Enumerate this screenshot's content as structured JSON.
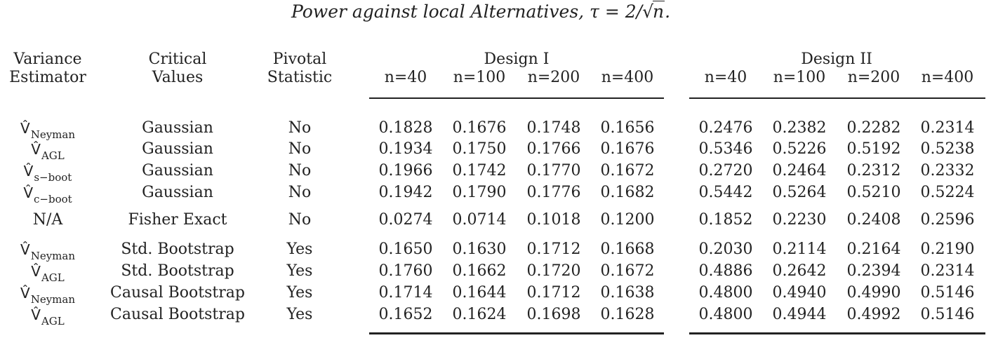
{
  "title": {
    "prefix": "Power against local Alternatives, τ = 2/",
    "radicand": "n",
    "suffix": "."
  },
  "headers": {
    "variance_estimator": [
      "Variance",
      "Estimator"
    ],
    "critical_values": [
      "Critical",
      "Values"
    ],
    "pivotal_statistic": [
      "Pivotal",
      "Statistic"
    ],
    "design1": "Design I",
    "design2": "Design II",
    "sample_sizes": [
      "n=40",
      "n=100",
      "n=200",
      "n=400"
    ]
  },
  "rows": [
    {
      "estimator": "V̂",
      "estimator_sub": "Neyman",
      "critical": "Gaussian",
      "pivotal": "No",
      "d1": [
        "0.1828",
        "0.1676",
        "0.1748",
        "0.1656"
      ],
      "d2": [
        "0.2476",
        "0.2382",
        "0.2282",
        "0.2314"
      ]
    },
    {
      "estimator": "V̂",
      "estimator_sub": "AGL",
      "critical": "Gaussian",
      "pivotal": "No",
      "d1": [
        "0.1934",
        "0.1750",
        "0.1766",
        "0.1676"
      ],
      "d2": [
        "0.5346",
        "0.5226",
        "0.5192",
        "0.5238"
      ]
    },
    {
      "estimator": "V̂",
      "estimator_sub": "s−boot",
      "critical": "Gaussian",
      "pivotal": "No",
      "d1": [
        "0.1966",
        "0.1742",
        "0.1770",
        "0.1672"
      ],
      "d2": [
        "0.2720",
        "0.2464",
        "0.2312",
        "0.2332"
      ]
    },
    {
      "estimator": "V̂",
      "estimator_sub": "c−boot",
      "critical": "Gaussian",
      "pivotal": "No",
      "d1": [
        "0.1942",
        "0.1790",
        "0.1776",
        "0.1682"
      ],
      "d2": [
        "0.5442",
        "0.5264",
        "0.5210",
        "0.5224"
      ]
    },
    {
      "estimator": "N/A",
      "estimator_sub": "",
      "critical": "Fisher Exact",
      "pivotal": "No",
      "d1": [
        "0.0274",
        "0.0714",
        "0.1018",
        "0.1200"
      ],
      "d2": [
        "0.1852",
        "0.2230",
        "0.2408",
        "0.2596"
      ]
    },
    {
      "estimator": "V̂",
      "estimator_sub": "Neyman",
      "critical": "Std. Bootstrap",
      "pivotal": "Yes",
      "d1": [
        "0.1650",
        "0.1630",
        "0.1712",
        "0.1668"
      ],
      "d2": [
        "0.2030",
        "0.2114",
        "0.2164",
        "0.2190"
      ]
    },
    {
      "estimator": "V̂",
      "estimator_sub": "AGL",
      "critical": "Std. Bootstrap",
      "pivotal": "Yes",
      "d1": [
        "0.1760",
        "0.1662",
        "0.1720",
        "0.1672"
      ],
      "d2": [
        "0.4886",
        "0.2642",
        "0.2394",
        "0.2314"
      ]
    },
    {
      "estimator": "V̂",
      "estimator_sub": "Neyman",
      "critical": "Causal Bootstrap",
      "pivotal": "Yes",
      "d1": [
        "0.1714",
        "0.1644",
        "0.1712",
        "0.1638"
      ],
      "d2": [
        "0.4800",
        "0.4940",
        "0.4990",
        "0.5146"
      ]
    },
    {
      "estimator": "V̂",
      "estimator_sub": "AGL",
      "critical": "Causal Bootstrap",
      "pivotal": "Yes",
      "d1": [
        "0.1652",
        "0.1624",
        "0.1698",
        "0.1628"
      ],
      "d2": [
        "0.4800",
        "0.4944",
        "0.4992",
        "0.5146"
      ]
    }
  ]
}
